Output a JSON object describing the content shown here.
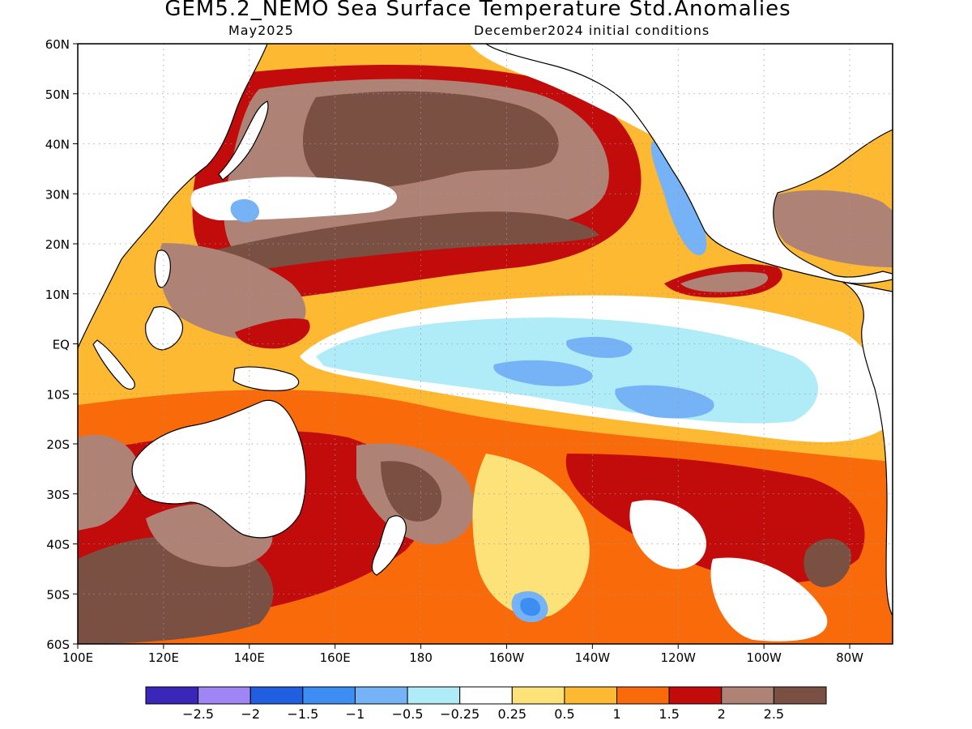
{
  "title": "GEM5.2_NEMO Sea Surface Temperature Std.Anomalies",
  "subtitle_left": "May2025",
  "subtitle_right": "December2024 initial conditions",
  "lat_ticks": [
    {
      "label": "60N",
      "lat": 60
    },
    {
      "label": "50N",
      "lat": 50
    },
    {
      "label": "40N",
      "lat": 40
    },
    {
      "label": "30N",
      "lat": 30
    },
    {
      "label": "20N",
      "lat": 20
    },
    {
      "label": "10N",
      "lat": 10
    },
    {
      "label": "EQ",
      "lat": 0
    },
    {
      "label": "10S",
      "lat": -10
    },
    {
      "label": "20S",
      "lat": -20
    },
    {
      "label": "30S",
      "lat": -30
    },
    {
      "label": "40S",
      "lat": -40
    },
    {
      "label": "50S",
      "lat": -50
    },
    {
      "label": "60S",
      "lat": -60
    }
  ],
  "lon_ticks": [
    {
      "label": "100E",
      "lon": 100
    },
    {
      "label": "120E",
      "lon": 120
    },
    {
      "label": "140E",
      "lon": 140
    },
    {
      "label": "160E",
      "lon": 160
    },
    {
      "label": "180",
      "lon": 180
    },
    {
      "label": "160W",
      "lon": 200
    },
    {
      "label": "140W",
      "lon": 220
    },
    {
      "label": "120W",
      "lon": 240
    },
    {
      "label": "100W",
      "lon": 260
    },
    {
      "label": "80W",
      "lon": 280
    }
  ],
  "extent": {
    "lon_min": 100,
    "lon_max": 290,
    "lat_min": -60,
    "lat_max": 60
  },
  "colorbar": {
    "colors": [
      "#3a26b8",
      "#9f86f4",
      "#1f5fe0",
      "#3d8ef2",
      "#76b3f6",
      "#b0ecf8",
      "#ffffff",
      "#fde27a",
      "#fdb932",
      "#f86a0a",
      "#c20b0b",
      "#ae8376",
      "#7a5043"
    ],
    "labels": [
      "−2.5",
      "−2",
      "−1.5",
      "−1",
      "−0.5",
      "−0.25",
      "0.25",
      "0.5",
      "1",
      "1.5",
      "2",
      "2.5"
    ]
  },
  "legend_colors": {
    "land": "#ffffff",
    "coast": "#000000",
    "grid": "#9a9a9a"
  }
}
